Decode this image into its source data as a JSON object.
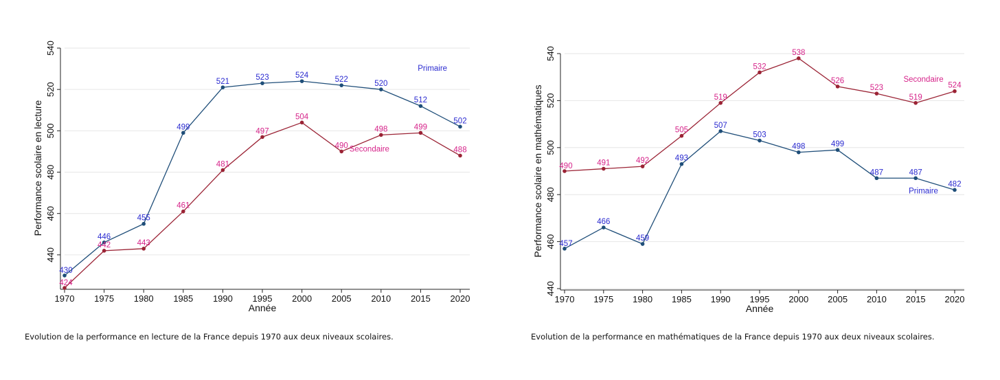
{
  "colors": {
    "primaire_line": "#1f4e79",
    "primaire_label": "#2a2ad0",
    "secondaire_line": "#9b2335",
    "secondaire_label": "#d6248a",
    "grid": "#e6e6e6",
    "axis": "#222222"
  },
  "chart_data": [
    {
      "type": "line",
      "xlabel": "Année",
      "ylabel": "Performance scolaire en lecture",
      "x": [
        1970,
        1975,
        1980,
        1985,
        1990,
        1995,
        2000,
        2005,
        2010,
        2015,
        2020
      ],
      "xlim": [
        1970,
        2020
      ],
      "ylim": [
        424,
        540
      ],
      "yticks": [
        440,
        460,
        480,
        500,
        520,
        540
      ],
      "grid": true,
      "series": [
        {
          "name": "Primaire",
          "values": [
            430,
            446,
            455,
            499,
            521,
            523,
            524,
            522,
            520,
            512,
            502
          ]
        },
        {
          "name": "Secondaire",
          "values": [
            424,
            442,
            443,
            461,
            481,
            497,
            504,
            490,
            498,
            499,
            488
          ]
        }
      ],
      "caption": "Evolution de la performance en lecture de la France depuis 1970 aux deux niveaux scolaires."
    },
    {
      "type": "line",
      "xlabel": "Année",
      "ylabel": "Performance scolaire en mathématiques",
      "x": [
        1970,
        1975,
        1980,
        1985,
        1990,
        1995,
        2000,
        2005,
        2010,
        2015,
        2020
      ],
      "xlim": [
        1970,
        2020
      ],
      "ylim": [
        440,
        540
      ],
      "yticks": [
        440,
        460,
        480,
        500,
        520,
        540
      ],
      "grid": true,
      "series": [
        {
          "name": "Primaire",
          "values": [
            457,
            466,
            459,
            493,
            507,
            503,
            498,
            499,
            487,
            487,
            482
          ]
        },
        {
          "name": "Secondaire",
          "values": [
            490,
            491,
            492,
            505,
            519,
            532,
            538,
            526,
            523,
            519,
            524
          ]
        }
      ],
      "caption": "Evolution de la performance en mathématiques de la France depuis 1970 aux deux niveaux scolaires."
    }
  ]
}
